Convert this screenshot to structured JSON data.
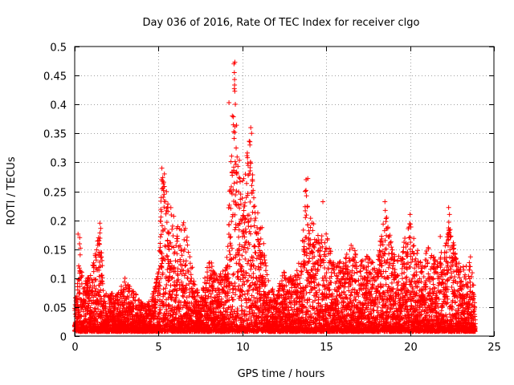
{
  "chart_data": {
    "type": "scatter",
    "title": "Day 036 of 2016, Rate Of TEC Index for receiver clgo",
    "xlabel": "GPS time / hours",
    "ylabel": "ROTI / TECUs",
    "xlim": [
      0,
      25
    ],
    "ylim": [
      0,
      0.5
    ],
    "xticks": [
      "0",
      "5",
      "10",
      "15",
      "20",
      "25"
    ],
    "yticks": [
      "0",
      "0.05",
      "0.1",
      "0.15",
      "0.2",
      "0.25",
      "0.3",
      "0.35",
      "0.4",
      "0.45",
      "0.5"
    ],
    "grid": true,
    "marker": "plus",
    "color": "#ff0000",
    "sampling": {
      "x_start": 0.0,
      "x_end": 23.9,
      "x_step": 0.01
    },
    "envelope": [
      [
        0.0,
        0.06
      ],
      [
        0.2,
        0.1
      ],
      [
        0.3,
        0.17
      ],
      [
        0.5,
        0.09
      ],
      [
        1.0,
        0.11
      ],
      [
        1.5,
        0.19
      ],
      [
        1.8,
        0.08
      ],
      [
        2.5,
        0.07
      ],
      [
        3.0,
        0.1
      ],
      [
        3.5,
        0.08
      ],
      [
        4.0,
        0.06
      ],
      [
        4.5,
        0.06
      ],
      [
        5.0,
        0.12
      ],
      [
        5.2,
        0.29
      ],
      [
        5.5,
        0.25
      ],
      [
        5.8,
        0.22
      ],
      [
        6.2,
        0.19
      ],
      [
        6.5,
        0.21
      ],
      [
        7.0,
        0.12
      ],
      [
        7.5,
        0.06
      ],
      [
        8.0,
        0.14
      ],
      [
        8.5,
        0.1
      ],
      [
        9.0,
        0.12
      ],
      [
        9.3,
        0.3
      ],
      [
        9.5,
        0.47
      ],
      [
        9.7,
        0.33
      ],
      [
        10.0,
        0.28
      ],
      [
        10.5,
        0.36
      ],
      [
        10.8,
        0.25
      ],
      [
        11.2,
        0.19
      ],
      [
        11.5,
        0.1
      ],
      [
        12.0,
        0.07
      ],
      [
        12.5,
        0.12
      ],
      [
        13.0,
        0.1
      ],
      [
        13.5,
        0.14
      ],
      [
        13.8,
        0.27
      ],
      [
        14.2,
        0.2
      ],
      [
        14.6,
        0.17
      ],
      [
        15.0,
        0.18
      ],
      [
        15.5,
        0.12
      ],
      [
        16.0,
        0.14
      ],
      [
        16.5,
        0.16
      ],
      [
        17.0,
        0.13
      ],
      [
        17.5,
        0.14
      ],
      [
        18.0,
        0.12
      ],
      [
        18.5,
        0.22
      ],
      [
        19.0,
        0.15
      ],
      [
        19.5,
        0.15
      ],
      [
        20.0,
        0.2
      ],
      [
        20.3,
        0.16
      ],
      [
        20.8,
        0.12
      ],
      [
        21.0,
        0.16
      ],
      [
        21.5,
        0.14
      ],
      [
        22.0,
        0.15
      ],
      [
        22.3,
        0.21
      ],
      [
        22.8,
        0.13
      ],
      [
        23.3,
        0.12
      ],
      [
        23.6,
        0.14
      ],
      [
        23.9,
        0.07
      ]
    ],
    "highlights": [
      [
        0.2,
        0.176
      ],
      [
        0.3,
        0.17
      ],
      [
        1.5,
        0.195
      ],
      [
        1.55,
        0.186
      ],
      [
        1.45,
        0.165
      ],
      [
        5.2,
        0.29
      ],
      [
        5.35,
        0.28
      ],
      [
        9.5,
        0.47
      ],
      [
        9.55,
        0.473
      ],
      [
        9.52,
        0.455
      ],
      [
        9.2,
        0.403
      ],
      [
        9.4,
        0.38
      ],
      [
        10.5,
        0.36
      ],
      [
        10.55,
        0.35
      ],
      [
        10.45,
        0.33
      ],
      [
        13.8,
        0.27
      ],
      [
        13.9,
        0.272
      ],
      [
        13.75,
        0.25
      ],
      [
        14.8,
        0.232
      ],
      [
        18.5,
        0.232
      ],
      [
        18.6,
        0.205
      ],
      [
        22.3,
        0.222
      ],
      [
        22.35,
        0.21
      ],
      [
        20.0,
        0.21
      ],
      [
        21.8,
        0.172
      ]
    ]
  }
}
